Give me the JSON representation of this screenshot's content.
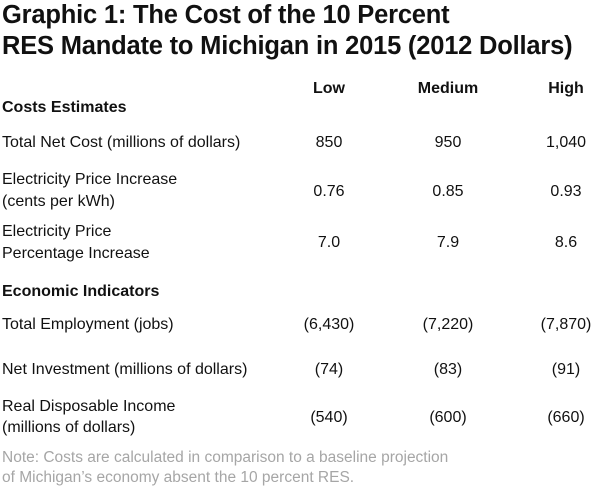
{
  "title_line1": "Graphic 1: The Cost of the 10 Percent",
  "title_line2": "RES Mandate to Michigan in 2015 (2012 Dollars)",
  "columns": [
    "Low",
    "Medium",
    "High"
  ],
  "sections": [
    {
      "heading": "Costs Estimates",
      "rows": [
        {
          "label1": "Total Net Cost (millions of dollars)",
          "label2": "",
          "values": [
            "850",
            "950",
            "1,040"
          ]
        },
        {
          "label1": "Electricity Price Increase",
          "label2": "(cents per kWh)",
          "values": [
            "0.76",
            "0.85",
            "0.93"
          ]
        },
        {
          "label1": "Electricity Price",
          "label2": "Percentage Increase",
          "values": [
            "7.0",
            "7.9",
            "8.6"
          ]
        }
      ]
    },
    {
      "heading": "Economic Indicators",
      "rows": [
        {
          "label1": "Total Employment (jobs)",
          "label2": "",
          "values": [
            "(6,430)",
            "(7,220)",
            "(7,870)"
          ]
        },
        {
          "label1": "Net Investment (millions of dollars)",
          "label2": "",
          "values": [
            "(74)",
            "(83)",
            "(91)"
          ]
        },
        {
          "label1": "Real Disposable Income",
          "label2": "(millions of dollars)",
          "values": [
            "(540)",
            "(600)",
            "(660)"
          ]
        }
      ]
    }
  ],
  "note_line1": "Note: Costs are calculated in comparison to a baseline projection",
  "note_line2": "of Michigan’s economy absent the 10 percent RES."
}
